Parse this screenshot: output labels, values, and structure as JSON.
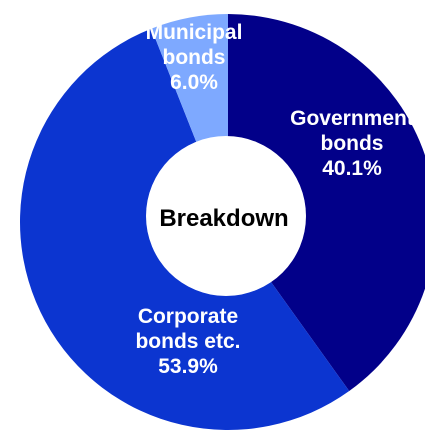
{
  "chart_data": {
    "type": "pie",
    "center_label": "Breakdown",
    "legend": "none",
    "slices": [
      {
        "label_lines": [
          "Government",
          "bonds"
        ],
        "value": 40.1,
        "value_label": "40.1%",
        "color": "#020089"
      },
      {
        "label_lines": [
          "Corporate",
          "bonds etc."
        ],
        "value": 53.9,
        "value_label": "53.9%",
        "color": "#0c35d0"
      },
      {
        "label_lines": [
          "Municipal",
          "bonds"
        ],
        "value": 6.0,
        "value_label": "6.0%",
        "color": "#7ea9ff"
      }
    ]
  }
}
